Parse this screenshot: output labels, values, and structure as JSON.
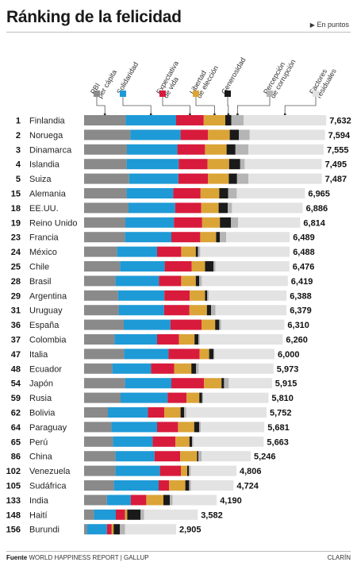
{
  "title": "Ránking de la felicidad",
  "unit_label": "En puntos",
  "footer": {
    "source_label": "Fuente",
    "source_text": "WORLD HAPPINESS REPORT | GALLUP",
    "credit": "CLARÍN"
  },
  "colors": {
    "PBI per cápita": "#8a8a8a",
    "Solidaridad": "#1e9ad6",
    "Expectativa de vida": "#d81b3c",
    "Libertad de elección": "#dba437",
    "Generosidad": "#1a1a1a",
    "Percepción de corrupción": "#b5b5b5",
    "Factores residuales": "#e3e3e3"
  },
  "chart_data": {
    "type": "bar",
    "stacked": true,
    "orientation": "horizontal",
    "legend_placement": "top",
    "grid": false,
    "legend": [
      "PBI per cápita",
      "Solidaridad",
      "Expectativa de vida",
      "Libertad de elección",
      "Generosidad",
      "Percepción de corrupción",
      "Factores residuales"
    ],
    "xlim": [
      0,
      8
    ],
    "rows": [
      {
        "rank": "1",
        "country": "Finlandia",
        "total": "7,632",
        "value": 7.632,
        "segments": [
          1.31,
          1.59,
          0.87,
          0.68,
          0.19,
          0.39,
          2.6
        ]
      },
      {
        "rank": "2",
        "country": "Noruega",
        "total": "7,594",
        "value": 7.594,
        "segments": [
          1.46,
          1.58,
          0.86,
          0.69,
          0.29,
          0.34,
          2.37
        ]
      },
      {
        "rank": "3",
        "country": "Dinamarca",
        "total": "7,555",
        "value": 7.555,
        "segments": [
          1.35,
          1.59,
          0.87,
          0.68,
          0.28,
          0.41,
          2.37
        ]
      },
      {
        "rank": "4",
        "country": "Islandia",
        "total": "7,495",
        "value": 7.495,
        "segments": [
          1.34,
          1.64,
          0.91,
          0.68,
          0.35,
          0.14,
          2.43
        ]
      },
      {
        "rank": "5",
        "country": "Suiza",
        "total": "7,487",
        "value": 7.487,
        "segments": [
          1.42,
          1.55,
          0.93,
          0.66,
          0.26,
          0.36,
          2.31
        ]
      },
      {
        "rank": "15",
        "country": "Alemania",
        "total": "6,965",
        "value": 6.965,
        "segments": [
          1.34,
          1.47,
          0.86,
          0.59,
          0.28,
          0.27,
          2.15
        ]
      },
      {
        "rank": "18",
        "country": "EE.UU.",
        "total": "6,886",
        "value": 6.886,
        "segments": [
          1.4,
          1.47,
          0.82,
          0.55,
          0.29,
          0.13,
          2.23
        ]
      },
      {
        "rank": "19",
        "country": "Reino Unido",
        "total": "6,814",
        "value": 6.814,
        "segments": [
          1.3,
          1.53,
          0.89,
          0.56,
          0.35,
          0.22,
          1.96
        ]
      },
      {
        "rank": "23",
        "country": "Francia",
        "total": "6,489",
        "value": 6.489,
        "segments": [
          1.29,
          1.46,
          0.91,
          0.5,
          0.12,
          0.2,
          2.0
        ]
      },
      {
        "rank": "24",
        "country": "México",
        "total": "6,488",
        "value": 6.488,
        "segments": [
          1.04,
          1.26,
          0.76,
          0.46,
          0.07,
          0.07,
          2.82
        ]
      },
      {
        "rank": "25",
        "country": "Chile",
        "total": "6,476",
        "value": 6.476,
        "segments": [
          1.13,
          1.41,
          0.85,
          0.42,
          0.27,
          0.06,
          2.33
        ]
      },
      {
        "rank": "28",
        "country": "Brasil",
        "total": "6,419",
        "value": 6.419,
        "segments": [
          0.99,
          1.37,
          0.7,
          0.46,
          0.11,
          0.08,
          2.71
        ]
      },
      {
        "rank": "29",
        "country": "Argentina",
        "total": "6,388",
        "value": 6.388,
        "segments": [
          1.07,
          1.46,
          0.8,
          0.48,
          0.07,
          0.05,
          2.45
        ]
      },
      {
        "rank": "31",
        "country": "Uruguay",
        "total": "6,379",
        "value": 6.379,
        "segments": [
          1.09,
          1.43,
          0.8,
          0.55,
          0.13,
          0.14,
          2.24
        ]
      },
      {
        "rank": "36",
        "country": "España",
        "total": "6,310",
        "value": 6.31,
        "segments": [
          1.25,
          1.47,
          0.98,
          0.43,
          0.13,
          0.06,
          1.99
        ]
      },
      {
        "rank": "37",
        "country": "Colombia",
        "total": "6,260",
        "value": 6.26,
        "segments": [
          0.96,
          1.34,
          0.69,
          0.49,
          0.12,
          0.05,
          2.61
        ]
      },
      {
        "rank": "47",
        "country": "Italia",
        "total": "6,000",
        "value": 6.0,
        "segments": [
          1.26,
          1.4,
          0.98,
          0.3,
          0.14,
          0.03,
          1.89
        ]
      },
      {
        "rank": "48",
        "country": "Ecuador",
        "total": "5,973",
        "value": 5.973,
        "segments": [
          0.89,
          1.22,
          0.73,
          0.54,
          0.15,
          0.08,
          2.36
        ]
      },
      {
        "rank": "54",
        "country": "Japón",
        "total": "5,915",
        "value": 5.915,
        "segments": [
          1.29,
          1.46,
          1.03,
          0.55,
          0.08,
          0.15,
          1.36
        ]
      },
      {
        "rank": "59",
        "country": "Rusia",
        "total": "5,810",
        "value": 5.81,
        "segments": [
          1.15,
          1.48,
          0.6,
          0.4,
          0.09,
          0.03,
          2.06
        ]
      },
      {
        "rank": "62",
        "country": "Bolivia",
        "total": "5,752",
        "value": 5.752,
        "segments": [
          0.75,
          1.26,
          0.52,
          0.51,
          0.11,
          0.07,
          2.53
        ]
      },
      {
        "rank": "64",
        "country": "Paraguay",
        "total": "5,681",
        "value": 5.681,
        "segments": [
          0.86,
          1.44,
          0.66,
          0.51,
          0.16,
          0.05,
          2.0
        ]
      },
      {
        "rank": "65",
        "country": "Perú",
        "total": "5,663",
        "value": 5.663,
        "segments": [
          0.91,
          1.25,
          0.72,
          0.44,
          0.08,
          0.04,
          2.22
        ]
      },
      {
        "rank": "86",
        "country": "China",
        "total": "5,246",
        "value": 5.246,
        "segments": [
          0.99,
          1.23,
          0.81,
          0.53,
          0.04,
          0.1,
          1.55
        ]
      },
      {
        "rank": "102",
        "country": "Venezuela",
        "total": "4,806",
        "value": 4.806,
        "segments": [
          0.99,
          1.4,
          0.66,
          0.2,
          0.05,
          0.06,
          1.44
        ]
      },
      {
        "rank": "105",
        "country": "Sudáfrica",
        "total": "4,724",
        "value": 4.724,
        "segments": [
          0.94,
          1.41,
          0.33,
          0.51,
          0.12,
          0.06,
          1.34
        ]
      },
      {
        "rank": "133",
        "country": "India",
        "total": "4,190",
        "value": 4.19,
        "segments": [
          0.72,
          0.75,
          0.49,
          0.54,
          0.2,
          0.09,
          1.39
        ]
      },
      {
        "rank": "148",
        "country": "Haití",
        "total": "3,582",
        "value": 3.582,
        "segments": [
          0.31,
          0.69,
          0.29,
          0.07,
          0.42,
          0.11,
          1.69
        ]
      },
      {
        "rank": "156",
        "country": "Burundi",
        "total": "2,905",
        "value": 2.905,
        "segments": [
          0.09,
          0.63,
          0.15,
          0.06,
          0.2,
          0.16,
          1.61
        ]
      }
    ]
  }
}
